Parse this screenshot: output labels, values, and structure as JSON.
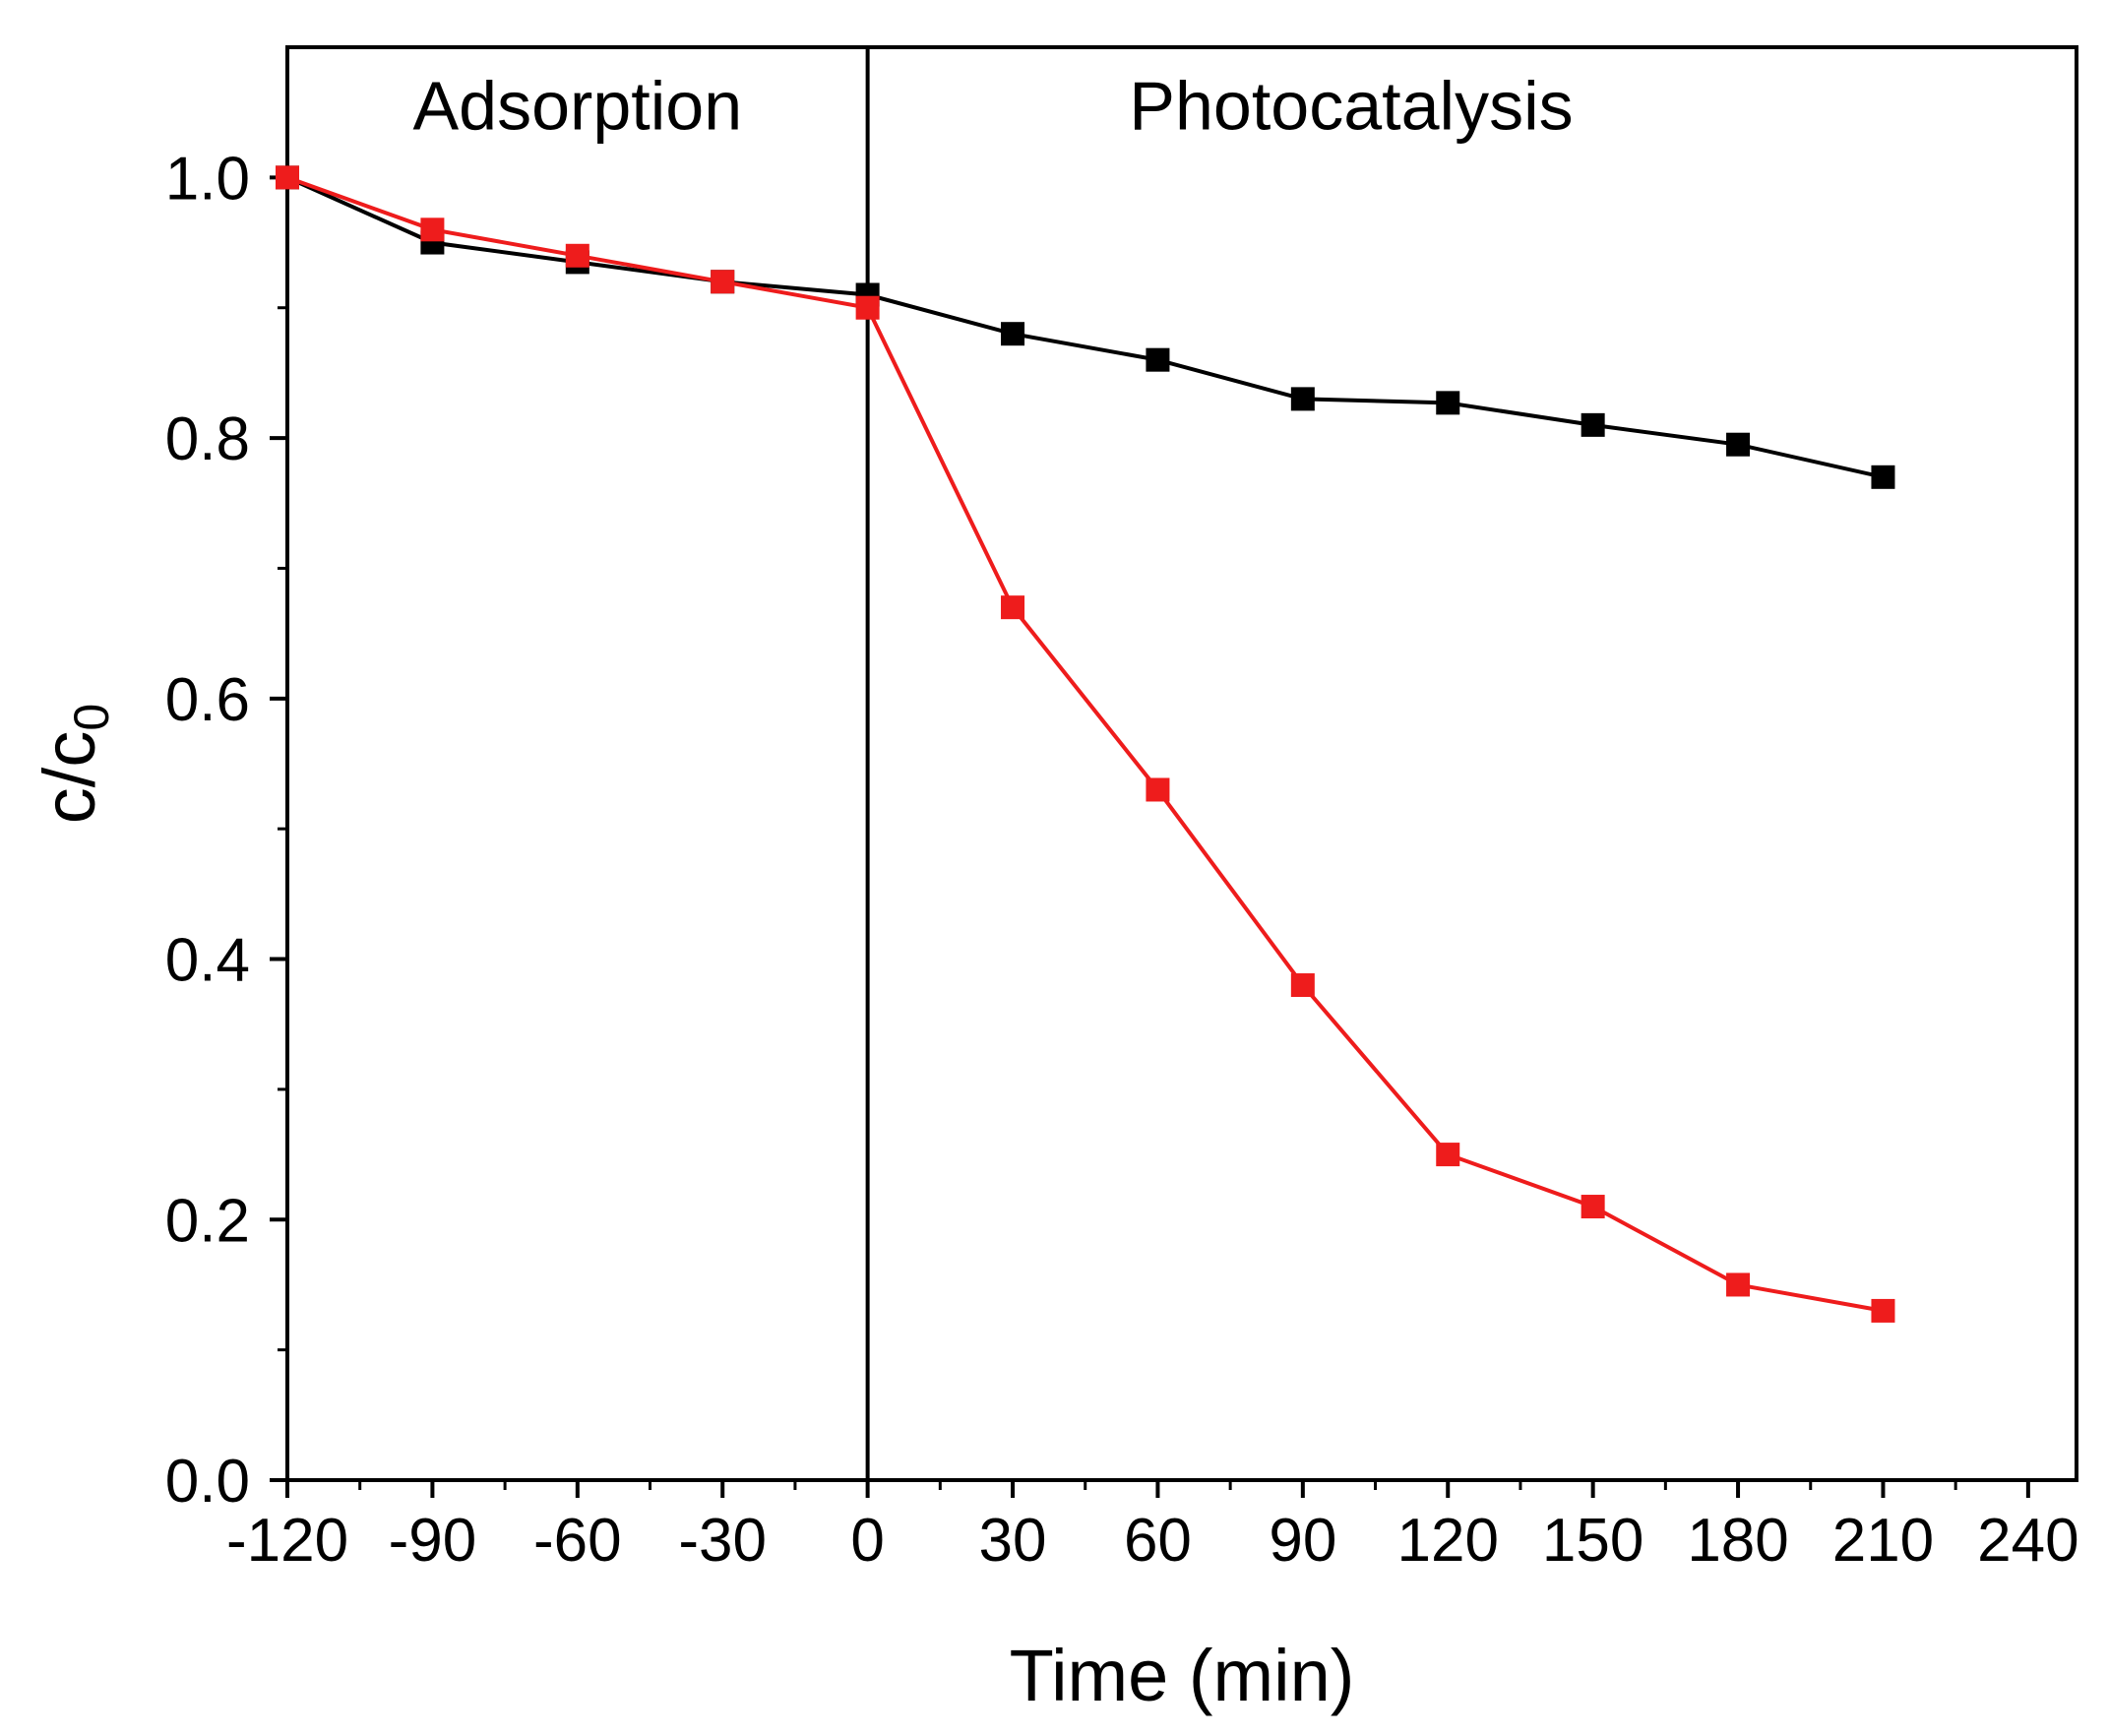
{
  "chart_data": {
    "type": "line",
    "title": "",
    "xlabel": "Time (min)",
    "ylabel": "c/c",
    "ylabel_subscript": "0",
    "xlim": [
      -120,
      250
    ],
    "ylim": [
      0,
      1.1
    ],
    "xticks": [
      -120,
      -90,
      -60,
      -30,
      0,
      30,
      60,
      90,
      120,
      150,
      180,
      210,
      240
    ],
    "xtick_labels": [
      "-120",
      "-90",
      "-60",
      "-30",
      "0",
      "30",
      "60",
      "90",
      "120",
      "150",
      "180",
      "210",
      "240"
    ],
    "yticks": [
      0,
      0.2,
      0.4,
      0.6,
      0.8,
      1.0
    ],
    "ytick_labels": [
      "0.0",
      "0.2",
      "0.4",
      "0.6",
      "0.8",
      "1.0"
    ],
    "grid": false,
    "divider_x": 0,
    "annotations": [
      {
        "text": "Adsorption",
        "x": -60,
        "y": 1.055
      },
      {
        "text": "Photocatalysis",
        "x": 100,
        "y": 1.055
      }
    ],
    "series": [
      {
        "name": "black",
        "color": "#000000",
        "marker": "square",
        "x": [
          -120,
          -90,
          -60,
          -30,
          0,
          30,
          60,
          90,
          120,
          150,
          180,
          210
        ],
        "values": [
          1.0,
          0.95,
          0.935,
          0.92,
          0.91,
          0.88,
          0.86,
          0.83,
          0.827,
          0.81,
          0.795,
          0.77
        ]
      },
      {
        "name": "red",
        "color": "#ee1c1c",
        "marker": "square",
        "x": [
          -120,
          -90,
          -60,
          -30,
          0,
          30,
          60,
          90,
          120,
          150,
          180,
          210
        ],
        "values": [
          1.0,
          0.96,
          0.94,
          0.92,
          0.9,
          0.67,
          0.53,
          0.38,
          0.25,
          0.21,
          0.15,
          0.13
        ]
      }
    ]
  }
}
